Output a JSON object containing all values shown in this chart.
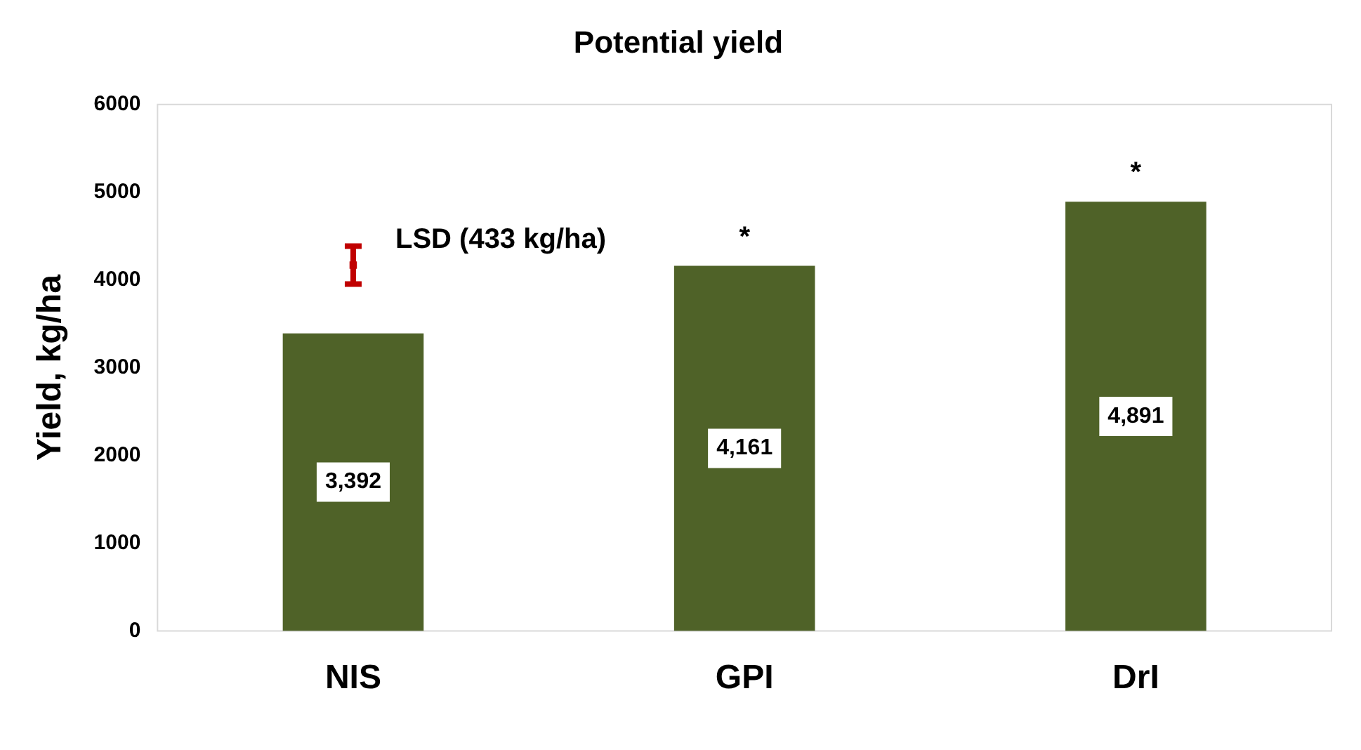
{
  "chart_data": {
    "type": "bar",
    "title": "Potential yield",
    "ylabel": "Yield, kg/ha",
    "categories": [
      "NIS",
      "GPI",
      "DrI"
    ],
    "series": [
      {
        "color": "#4f6228",
        "values": [
          3392,
          4161,
          4891
        ],
        "value_labels": [
          "3,392",
          "4,161",
          "4,891"
        ]
      },
      {
        "type": "scatter",
        "color": "#c00000",
        "x": [
          "NIS"
        ],
        "values": [
          4170
        ],
        "errors": [
          216.5
        ],
        "marker": "square"
      }
    ],
    "ylim": [
      0,
      6000
    ],
    "yticks": [
      0,
      1000,
      2000,
      3000,
      4000,
      5000,
      6000
    ],
    "grid": false,
    "legend": false,
    "annotations": [
      {
        "text": "LSD (433 kg/ha)",
        "x": "NIS",
        "y": 4450
      },
      {
        "text": "*",
        "x": "GPI",
        "y": 4161
      },
      {
        "text": "*",
        "x": "DrI",
        "y": 4891
      }
    ]
  }
}
